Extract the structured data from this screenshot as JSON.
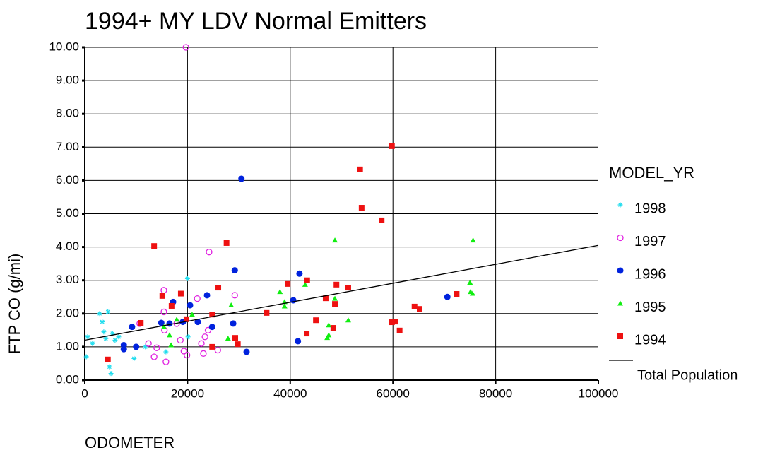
{
  "chart_data": {
    "type": "scatter",
    "title": "1994+ MY LDV Normal Emitters",
    "x_label": "ODOMETER",
    "y_label": "FTP CO  (g/mi)",
    "legend_title": "MODEL_YR",
    "legend": "right",
    "grid": true,
    "xlim": [
      0,
      100000
    ],
    "xticks": [
      0,
      20000,
      40000,
      60000,
      80000,
      100000
    ],
    "ylim": [
      0,
      10
    ],
    "yticks": [
      {
        "value": 0,
        "label": "0.00"
      },
      {
        "value": 1,
        "label": "1.00"
      },
      {
        "value": 2,
        "label": "2.00"
      },
      {
        "value": 3,
        "label": "3.00"
      },
      {
        "value": 4,
        "label": "4.00"
      },
      {
        "value": 5,
        "label": "5.00"
      },
      {
        "value": 6,
        "label": "6.00"
      },
      {
        "value": 7,
        "label": "7.00"
      },
      {
        "value": 8,
        "label": "8.00"
      },
      {
        "value": 9,
        "label": "9.00"
      },
      {
        "value": 10,
        "label": "10.00"
      }
    ],
    "series": [
      {
        "name": "1998",
        "color": "#22ddee",
        "marker": "asterisk",
        "x": [
          300,
          550,
          1500,
          2900,
          3400,
          3700,
          4100,
          4500,
          4800,
          5100,
          5400,
          5900,
          6600,
          9600,
          11800,
          15800,
          20000,
          20100
        ],
        "values": [
          0.7,
          1.3,
          1.1,
          2.0,
          1.75,
          1.45,
          1.25,
          2.05,
          0.4,
          0.2,
          1.4,
          1.2,
          1.3,
          0.65,
          1.0,
          0.85,
          3.05,
          1.3
        ]
      },
      {
        "name": "1997",
        "color": "#e020e0",
        "marker": "open-circle",
        "x": [
          19700,
          15400,
          15400,
          15500,
          12400,
          13500,
          14000,
          15800,
          18600,
          19300,
          19900,
          17900,
          21900,
          22700,
          23400,
          24000,
          24200,
          25900,
          29200,
          23100,
          10700
        ],
        "values": [
          10.0,
          2.7,
          2.05,
          1.5,
          1.1,
          0.7,
          0.97,
          0.55,
          1.2,
          0.87,
          0.75,
          1.7,
          2.45,
          1.1,
          1.3,
          1.5,
          3.85,
          0.9,
          2.55,
          0.8,
          1.7
        ]
      },
      {
        "name": "1996",
        "color": "#0022dd",
        "marker": "circle",
        "x": [
          30500,
          29200,
          41800,
          40600,
          23800,
          20500,
          17200,
          14900,
          16500,
          19100,
          22000,
          24800,
          28900,
          9200,
          10000,
          7600,
          7600,
          31500,
          41500,
          70600
        ],
        "values": [
          6.05,
          3.3,
          3.2,
          2.4,
          2.55,
          2.25,
          2.35,
          1.72,
          1.7,
          1.75,
          1.75,
          1.6,
          1.7,
          1.6,
          1.0,
          1.05,
          0.93,
          0.85,
          1.17,
          2.5
        ]
      },
      {
        "name": "1995",
        "color": "#11ee11",
        "marker": "triangle",
        "x": [
          15400,
          16500,
          16800,
          17900,
          20900,
          27900,
          28500,
          38000,
          38900,
          38900,
          42900,
          47500,
          47200,
          47500,
          48700,
          48700,
          51300,
          75000,
          75100,
          75500,
          75600
        ],
        "values": [
          1.6,
          1.35,
          1.05,
          1.82,
          1.97,
          1.25,
          2.25,
          2.65,
          2.35,
          2.22,
          2.87,
          1.65,
          1.27,
          1.35,
          2.45,
          4.2,
          1.8,
          2.93,
          2.65,
          2.6,
          4.2
        ]
      },
      {
        "name": "1994",
        "color": "#ee1111",
        "marker": "square",
        "x": [
          13500,
          27600,
          4500,
          10900,
          15100,
          16900,
          18700,
          19800,
          24800,
          26000,
          29300,
          29800,
          24800,
          35400,
          39500,
          43300,
          43200,
          45000,
          46900,
          48700,
          49000,
          48400,
          51300,
          53600,
          53900,
          57800,
          59800,
          59800,
          60500,
          61300,
          64200,
          65200,
          72400
        ],
        "values": [
          4.03,
          4.12,
          0.62,
          1.72,
          2.53,
          2.23,
          2.6,
          1.83,
          1.97,
          2.78,
          1.27,
          1.08,
          1.0,
          2.02,
          2.89,
          3.0,
          1.4,
          1.8,
          2.46,
          2.29,
          2.87,
          1.57,
          2.78,
          6.33,
          5.18,
          4.8,
          7.03,
          1.74,
          1.76,
          1.49,
          2.21,
          2.14,
          2.59
        ]
      }
    ],
    "trend": {
      "name": "Total Population",
      "color": "#000000",
      "x": [
        0,
        100000
      ],
      "values": [
        1.2,
        4.05
      ]
    }
  }
}
